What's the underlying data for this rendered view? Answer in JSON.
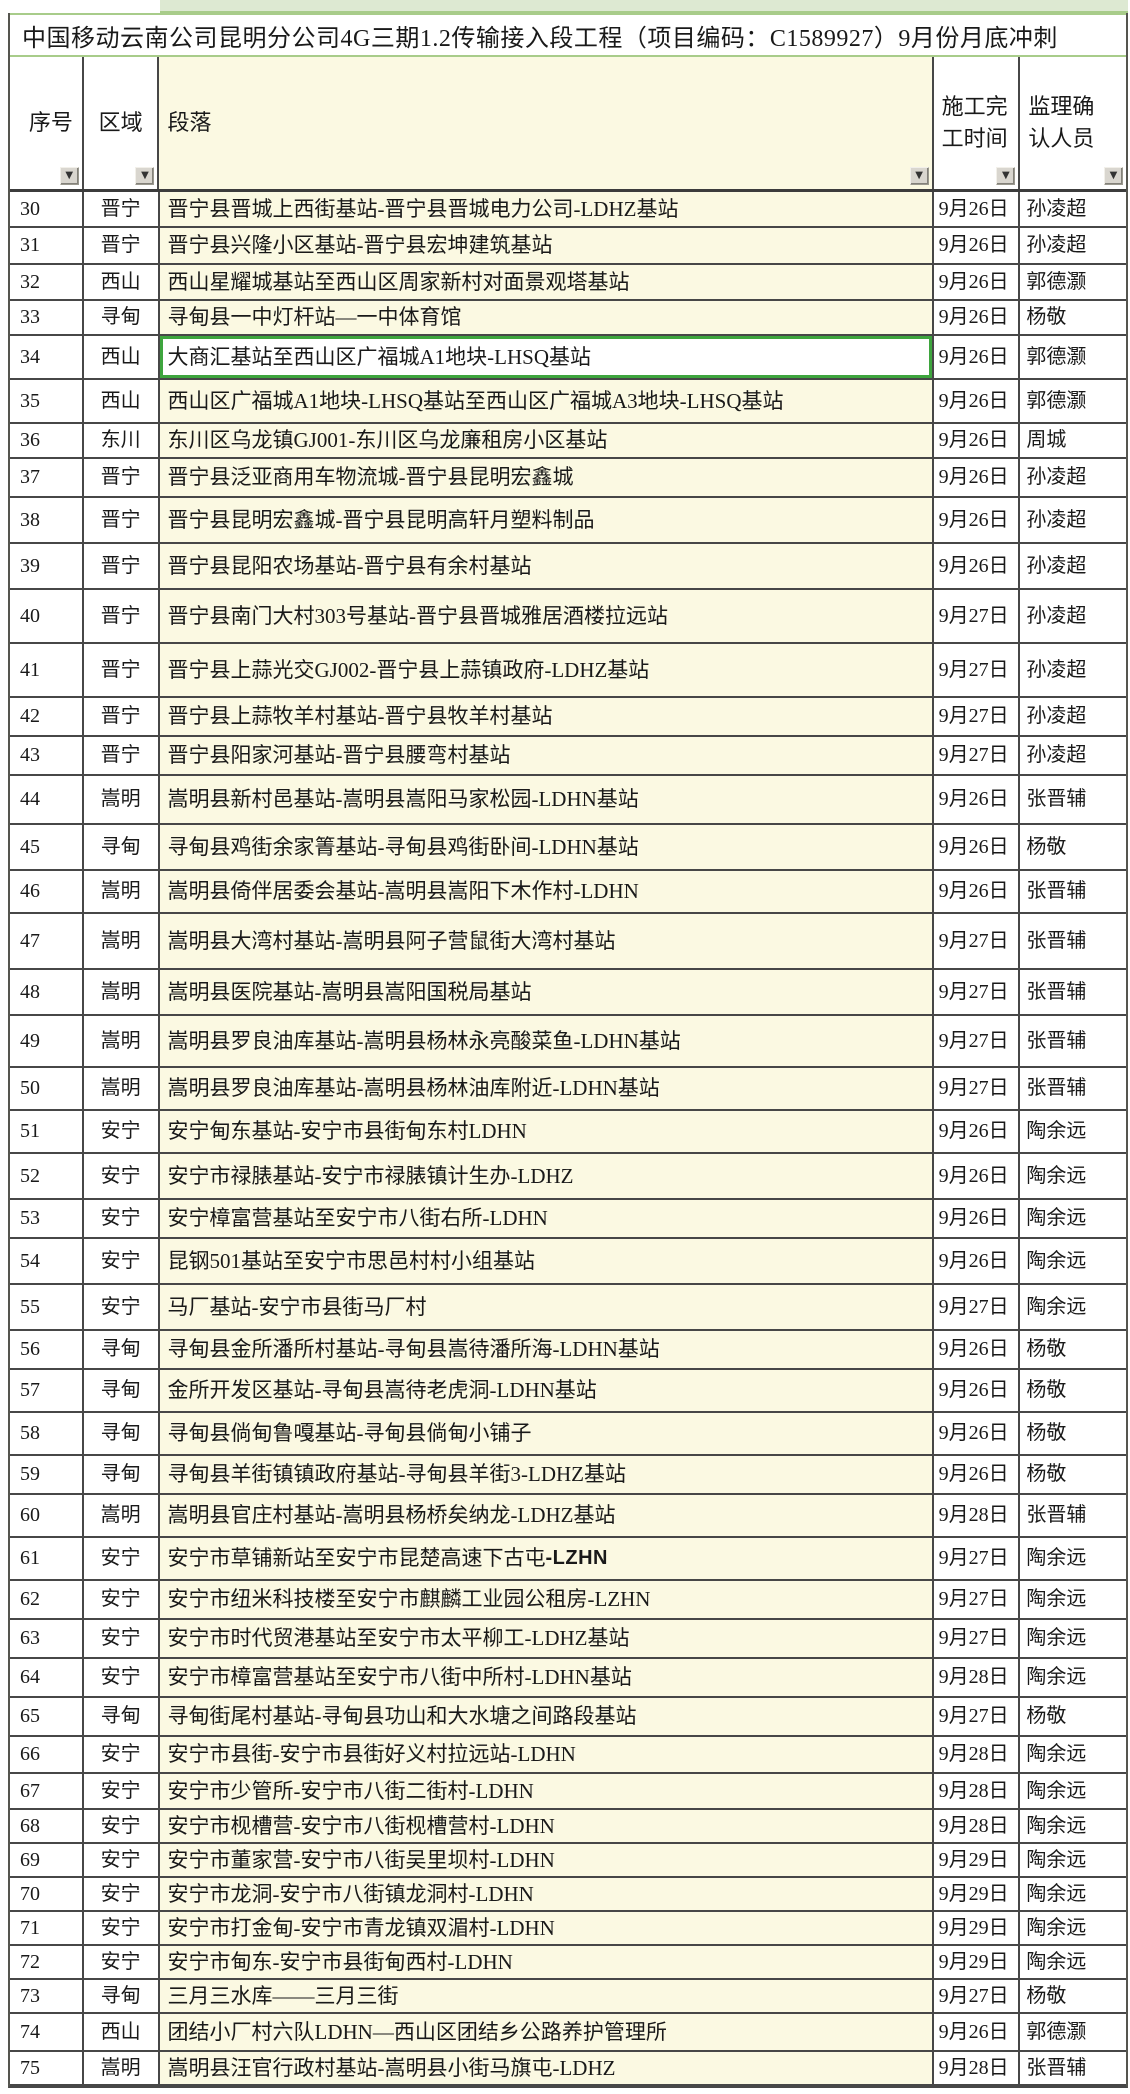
{
  "title": "中国移动云南公司昆明分公司4G三期1.2传输接入段工程（项目编码：C1589927）9月份月底冲刺",
  "columns": [
    {
      "label": "序号"
    },
    {
      "label": "区域"
    },
    {
      "label": "段落"
    },
    {
      "label": "施工完工时间"
    },
    {
      "label": "监理确认人员"
    }
  ],
  "icons": {
    "filter_dropdown": "▼"
  },
  "selection": {
    "row_index": "34",
    "column": "段落"
  },
  "colors": {
    "segment_column_bg": "#fbf9e2",
    "grid_line": "#474747",
    "selection_border": "#3ea53e",
    "top_strip_green": "#dde9d2",
    "title_border_green": "#a8cc8a",
    "filter_button_bg": "#d9d6cf"
  },
  "rows": [
    {
      "index": "30",
      "region": "晋宁",
      "segment": "晋宁县晋城上西街基站-晋宁县晋城电力公司-LDHZ基站",
      "finish_date": "9月26日",
      "supervisor": "孙凌超"
    },
    {
      "index": "31",
      "region": "晋宁",
      "segment": "晋宁县兴隆小区基站-晋宁县宏坤建筑基站",
      "finish_date": "9月26日",
      "supervisor": "孙凌超"
    },
    {
      "index": "32",
      "region": "西山",
      "segment": "西山星耀城基站至西山区周家新村对面景观塔基站",
      "finish_date": "9月26日",
      "supervisor": "郭德灏"
    },
    {
      "index": "33",
      "region": "寻甸",
      "segment": "寻甸县一中灯杆站—一中体育馆",
      "finish_date": "9月26日",
      "supervisor": "杨敬"
    },
    {
      "index": "34",
      "region": "西山",
      "segment": "大商汇基站至西山区广福城A1地块-LHSQ基站",
      "finish_date": "9月26日",
      "supervisor": "郭德灏"
    },
    {
      "index": "35",
      "region": "西山",
      "segment": "西山区广福城A1地块-LHSQ基站至西山区广福城A3地块-LHSQ基站",
      "finish_date": "9月26日",
      "supervisor": "郭德灏"
    },
    {
      "index": "36",
      "region": "东川",
      "segment": "东川区乌龙镇GJ001-东川区乌龙廉租房小区基站",
      "finish_date": "9月26日",
      "supervisor": "周城"
    },
    {
      "index": "37",
      "region": "晋宁",
      "segment": "晋宁县泛亚商用车物流城-晋宁县昆明宏鑫城",
      "finish_date": "9月26日",
      "supervisor": "孙凌超"
    },
    {
      "index": "38",
      "region": "晋宁",
      "segment": "晋宁县昆明宏鑫城-晋宁县昆明高轩月塑料制品",
      "finish_date": "9月26日",
      "supervisor": "孙凌超"
    },
    {
      "index": "39",
      "region": "晋宁",
      "segment": "晋宁县昆阳农场基站-晋宁县有余村基站",
      "finish_date": "9月26日",
      "supervisor": "孙凌超"
    },
    {
      "index": "40",
      "region": "晋宁",
      "segment": "晋宁县南门大村303号基站-晋宁县晋城雅居酒楼拉远站",
      "finish_date": "9月27日",
      "supervisor": "孙凌超"
    },
    {
      "index": "41",
      "region": "晋宁",
      "segment": "晋宁县上蒜光交GJ002-晋宁县上蒜镇政府-LDHZ基站",
      "finish_date": "9月27日",
      "supervisor": "孙凌超"
    },
    {
      "index": "42",
      "region": "晋宁",
      "segment": "晋宁县上蒜牧羊村基站-晋宁县牧羊村基站",
      "finish_date": "9月27日",
      "supervisor": "孙凌超"
    },
    {
      "index": "43",
      "region": "晋宁",
      "segment": "晋宁县阳家河基站-晋宁县腰弯村基站",
      "finish_date": "9月27日",
      "supervisor": "孙凌超"
    },
    {
      "index": "44",
      "region": "嵩明",
      "segment": "嵩明县新村邑基站-嵩明县嵩阳马家松园-LDHN基站",
      "finish_date": "9月26日",
      "supervisor": "张晋辅"
    },
    {
      "index": "45",
      "region": "寻甸",
      "segment": "寻甸县鸡街余家箐基站-寻甸县鸡街卧间-LDHN基站",
      "finish_date": "9月26日",
      "supervisor": "杨敬"
    },
    {
      "index": "46",
      "region": "嵩明",
      "segment": "嵩明县倚伴居委会基站-嵩明县嵩阳下木作村-LDHN",
      "finish_date": "9月26日",
      "supervisor": "张晋辅"
    },
    {
      "index": "47",
      "region": "嵩明",
      "segment": "嵩明县大湾村基站-嵩明县阿子营鼠街大湾村基站",
      "finish_date": "9月27日",
      "supervisor": "张晋辅"
    },
    {
      "index": "48",
      "region": "嵩明",
      "segment": "嵩明县医院基站-嵩明县嵩阳国税局基站",
      "finish_date": "9月27日",
      "supervisor": "张晋辅"
    },
    {
      "index": "49",
      "region": "嵩明",
      "segment": "嵩明县罗良油库基站-嵩明县杨林永亮酸菜鱼-LDHN基站",
      "finish_date": "9月27日",
      "supervisor": "张晋辅"
    },
    {
      "index": "50",
      "region": "嵩明",
      "segment": "嵩明县罗良油库基站-嵩明县杨林油库附近-LDHN基站",
      "finish_date": "9月27日",
      "supervisor": "张晋辅"
    },
    {
      "index": "51",
      "region": "安宁",
      "segment": "安宁甸东基站-安宁市县街甸东村LDHN",
      "finish_date": "9月26日",
      "supervisor": "陶余远"
    },
    {
      "index": "52",
      "region": "安宁",
      "segment": "安宁市禄脿基站-安宁市禄脿镇计生办-LDHZ",
      "finish_date": "9月26日",
      "supervisor": "陶余远"
    },
    {
      "index": "53",
      "region": "安宁",
      "segment": "安宁樟富营基站至安宁市八街右所-LDHN",
      "finish_date": "9月26日",
      "supervisor": "陶余远"
    },
    {
      "index": "54",
      "region": "安宁",
      "segment": "昆钢501基站至安宁市思邑村村小组基站",
      "finish_date": "9月26日",
      "supervisor": "陶余远"
    },
    {
      "index": "55",
      "region": "安宁",
      "segment": "马厂基站-安宁市县街马厂村",
      "finish_date": "9月27日",
      "supervisor": "陶余远"
    },
    {
      "index": "56",
      "region": "寻甸",
      "segment": "寻甸县金所潘所村基站-寻甸县嵩待潘所海-LDHN基站",
      "finish_date": "9月26日",
      "supervisor": "杨敬"
    },
    {
      "index": "57",
      "region": "寻甸",
      "segment": "金所开发区基站-寻甸县嵩待老虎洞-LDHN基站",
      "finish_date": "9月26日",
      "supervisor": "杨敬"
    },
    {
      "index": "58",
      "region": "寻甸",
      "segment": "寻甸县倘甸鲁嘎基站-寻甸县倘甸小铺子",
      "finish_date": "9月26日",
      "supervisor": "杨敬"
    },
    {
      "index": "59",
      "region": "寻甸",
      "segment": "寻甸县羊街镇镇政府基站-寻甸县羊街3-LDHZ基站",
      "finish_date": "9月26日",
      "supervisor": "杨敬"
    },
    {
      "index": "60",
      "region": "嵩明",
      "segment": "嵩明县官庄村基站-嵩明县杨桥矣纳龙-LDHZ基站",
      "finish_date": "9月28日",
      "supervisor": "张晋辅"
    },
    {
      "index": "61",
      "region": "安宁",
      "segment": "安宁市草铺新站至安宁市昆楚高速下古屯",
      "segment_bold": "-LZHN",
      "finish_date": "9月27日",
      "supervisor": "陶余远"
    },
    {
      "index": "62",
      "region": "安宁",
      "segment": "安宁市纽米科技楼至安宁市麒麟工业园公租房-LZHN",
      "finish_date": "9月27日",
      "supervisor": "陶余远"
    },
    {
      "index": "63",
      "region": "安宁",
      "segment": "安宁市时代贸港基站至安宁市太平柳工-LDHZ基站",
      "finish_date": "9月27日",
      "supervisor": "陶余远"
    },
    {
      "index": "64",
      "region": "安宁",
      "segment": "安宁市樟富营基站至安宁市八街中所村-LDHN基站",
      "finish_date": "9月28日",
      "supervisor": "陶余远"
    },
    {
      "index": "65",
      "region": "寻甸",
      "segment": "寻甸街尾村基站-寻甸县功山和大水塘之间路段基站",
      "finish_date": "9月27日",
      "supervisor": "杨敬"
    },
    {
      "index": "66",
      "region": "安宁",
      "segment": "安宁市县街-安宁市县街好义村拉远站-LDHN",
      "finish_date": "9月28日",
      "supervisor": "陶余远"
    },
    {
      "index": "67",
      "region": "安宁",
      "segment": "安宁市少管所-安宁市八街二街村-LDHN",
      "finish_date": "9月28日",
      "supervisor": "陶余远"
    },
    {
      "index": "68",
      "region": "安宁",
      "segment": "安宁市枧槽营-安宁市八街枧槽营村-LDHN",
      "finish_date": "9月28日",
      "supervisor": "陶余远"
    },
    {
      "index": "69",
      "region": "安宁",
      "segment": "安宁市董家营-安宁市八街吴里坝村-LDHN",
      "finish_date": "9月29日",
      "supervisor": "陶余远"
    },
    {
      "index": "70",
      "region": "安宁",
      "segment": "安宁市龙洞-安宁市八街镇龙洞村-LDHN",
      "finish_date": "9月29日",
      "supervisor": "陶余远"
    },
    {
      "index": "71",
      "region": "安宁",
      "segment": "安宁市打金甸-安宁市青龙镇双湄村-LDHN",
      "finish_date": "9月29日",
      "supervisor": "陶余远"
    },
    {
      "index": "72",
      "region": "安宁",
      "segment": "安宁市甸东-安宁市县街甸西村-LDHN",
      "finish_date": "9月29日",
      "supervisor": "陶余远"
    },
    {
      "index": "73",
      "region": "寻甸",
      "segment": "三月三水库——三月三街",
      "finish_date": "9月27日",
      "supervisor": "杨敬"
    },
    {
      "index": "74",
      "region": "西山",
      "segment": "团结小厂村六队LDHN—西山区团结乡公路养护管理所",
      "finish_date": "9月26日",
      "supervisor": "郭德灏"
    },
    {
      "index": "75",
      "region": "嵩明",
      "segment": "嵩明县汪官行政村基站-嵩明县小街马旗屯-LDHZ",
      "finish_date": "9月28日",
      "supervisor": "张晋辅"
    }
  ]
}
